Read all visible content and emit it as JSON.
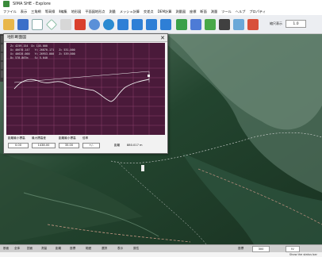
{
  "window": {
    "title": "SIMA SHE - Explore",
    "icon": "app-icon"
  },
  "menu": [
    "ファイル",
    "表示",
    "三角網",
    "等高線",
    "Ⅱ編集",
    "地形図",
    "平面図地形点",
    "測量",
    "メッシュ計算",
    "交差点",
    "DEM計算",
    "測量図",
    "座標",
    "断面",
    "測量",
    "ツール",
    "ヘルプ",
    "プロパティ"
  ],
  "toolbar": {
    "zoom_label": "縮尺表示",
    "zoom_value": "1.0",
    "icons": [
      "folder-open-icon",
      "save-icon",
      "page-icon",
      "diamond-icon",
      "cut-icon",
      "tools-icon",
      "search-icon",
      "globe-icon",
      "arrow-up-icon",
      "arrow-down-icon",
      "arrow-left-icon",
      "arrow-right-icon",
      "map-icon",
      "layer-icon",
      "pen-icon",
      "grid-icon",
      "bookmark-icon",
      "rocket-icon"
    ]
  },
  "sidebar": [
    "断面",
    "表示",
    "計算",
    "距離",
    "座標",
    "平面",
    "属性",
    "範囲"
  ],
  "profile_window": {
    "title": "地形断面図",
    "close": "✕",
    "info_lines": [
      "Z= 4259.154  D= 145.000",
      "X= 40670.147   Y= 26870.171   Z= 531.000",
      "X= 40620.000   Y= 26953.000   Z= 539.000",
      "D= 578.867m    S= 5.040"
    ],
    "controls": [
      {
        "label": "距離最小標高",
        "value": "0.00"
      },
      {
        "label": "最大標高差",
        "value": "1438.00"
      },
      {
        "label": "距離最小標高",
        "value": "35.00"
      },
      {
        "label": "倍率",
        "value": "+/-"
      }
    ],
    "distance_label": "距離",
    "distance_value": "880.017 m"
  },
  "statusbar": {
    "items": [
      "断面",
      "全体",
      "図面",
      "測量",
      "距離",
      "座標",
      "範囲",
      "選択",
      "表示",
      "属性"
    ],
    "right_label": "座標",
    "right_value": "300",
    "right_end": "IV"
  },
  "bottom_text": "Show the status bar"
}
